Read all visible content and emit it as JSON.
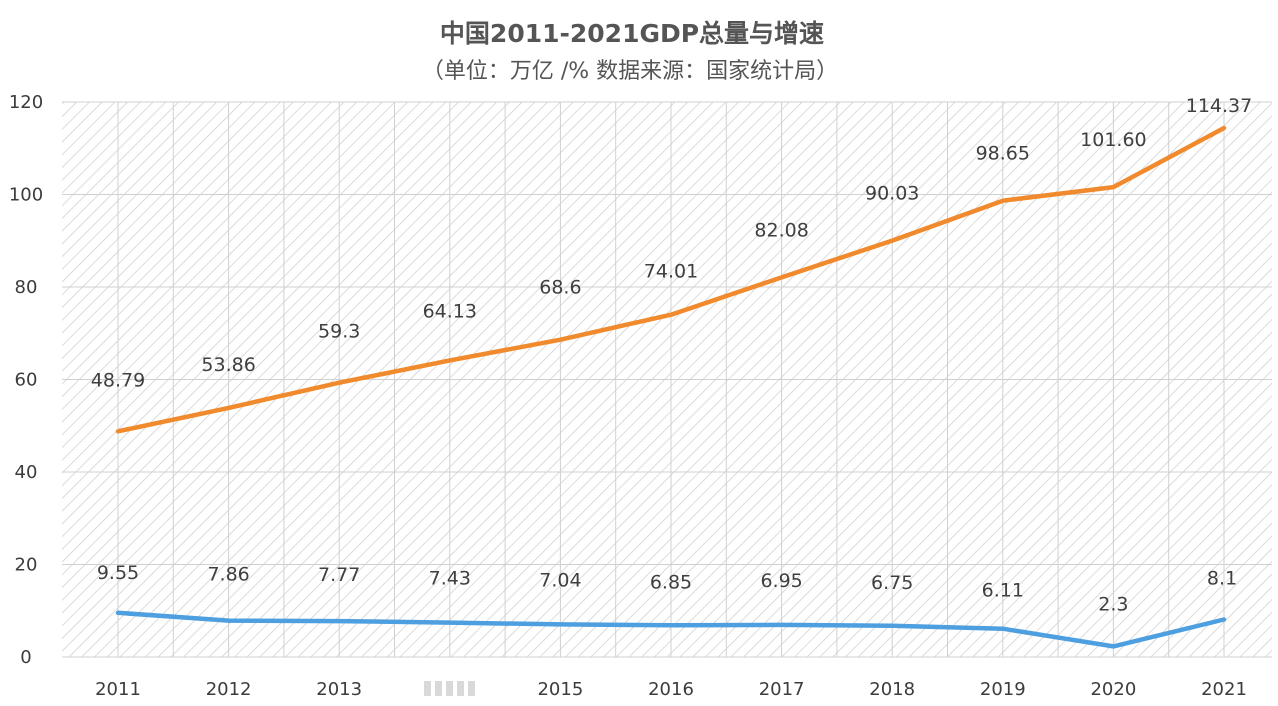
{
  "chart_data": {
    "type": "line",
    "title": "中国2011-2021GDP总量与增速",
    "subtitle": "（单位：万亿 /%      数据来源：国家统计局）",
    "categories": [
      "2011",
      "2012",
      "2013",
      "2014",
      "2015",
      "2016",
      "2017",
      "2018",
      "2019",
      "2020",
      "2021"
    ],
    "x_tick_labels": [
      "2011",
      "2012",
      "2013",
      "",
      "2015",
      "2016",
      "2017",
      "2018",
      "2019",
      "2020",
      "2021"
    ],
    "ylim": [
      0,
      120
    ],
    "yticks": [
      0,
      20,
      40,
      60,
      80,
      100,
      120
    ],
    "grid": true,
    "legend": "none",
    "series": [
      {
        "color": "#f08a2c",
        "values": [
          48.79,
          53.86,
          59.3,
          64.13,
          68.6,
          74.01,
          82.08,
          90.03,
          98.65,
          101.6,
          114.37
        ],
        "labels": [
          "48.79",
          "53.86",
          "59.3",
          "64.13",
          "68.6",
          "74.01",
          "82.08",
          "90.03",
          "98.65",
          "101.60",
          "114.37"
        ]
      },
      {
        "color": "#4d9fe0",
        "values": [
          9.55,
          7.86,
          7.77,
          7.43,
          7.04,
          6.85,
          6.95,
          6.75,
          6.11,
          2.3,
          8.1
        ],
        "labels": [
          "9.55",
          "7.86",
          "7.77",
          "7.43",
          "7.04",
          "6.85",
          "6.95",
          "6.75",
          "6.11",
          "2.3",
          "8.1"
        ]
      }
    ]
  }
}
